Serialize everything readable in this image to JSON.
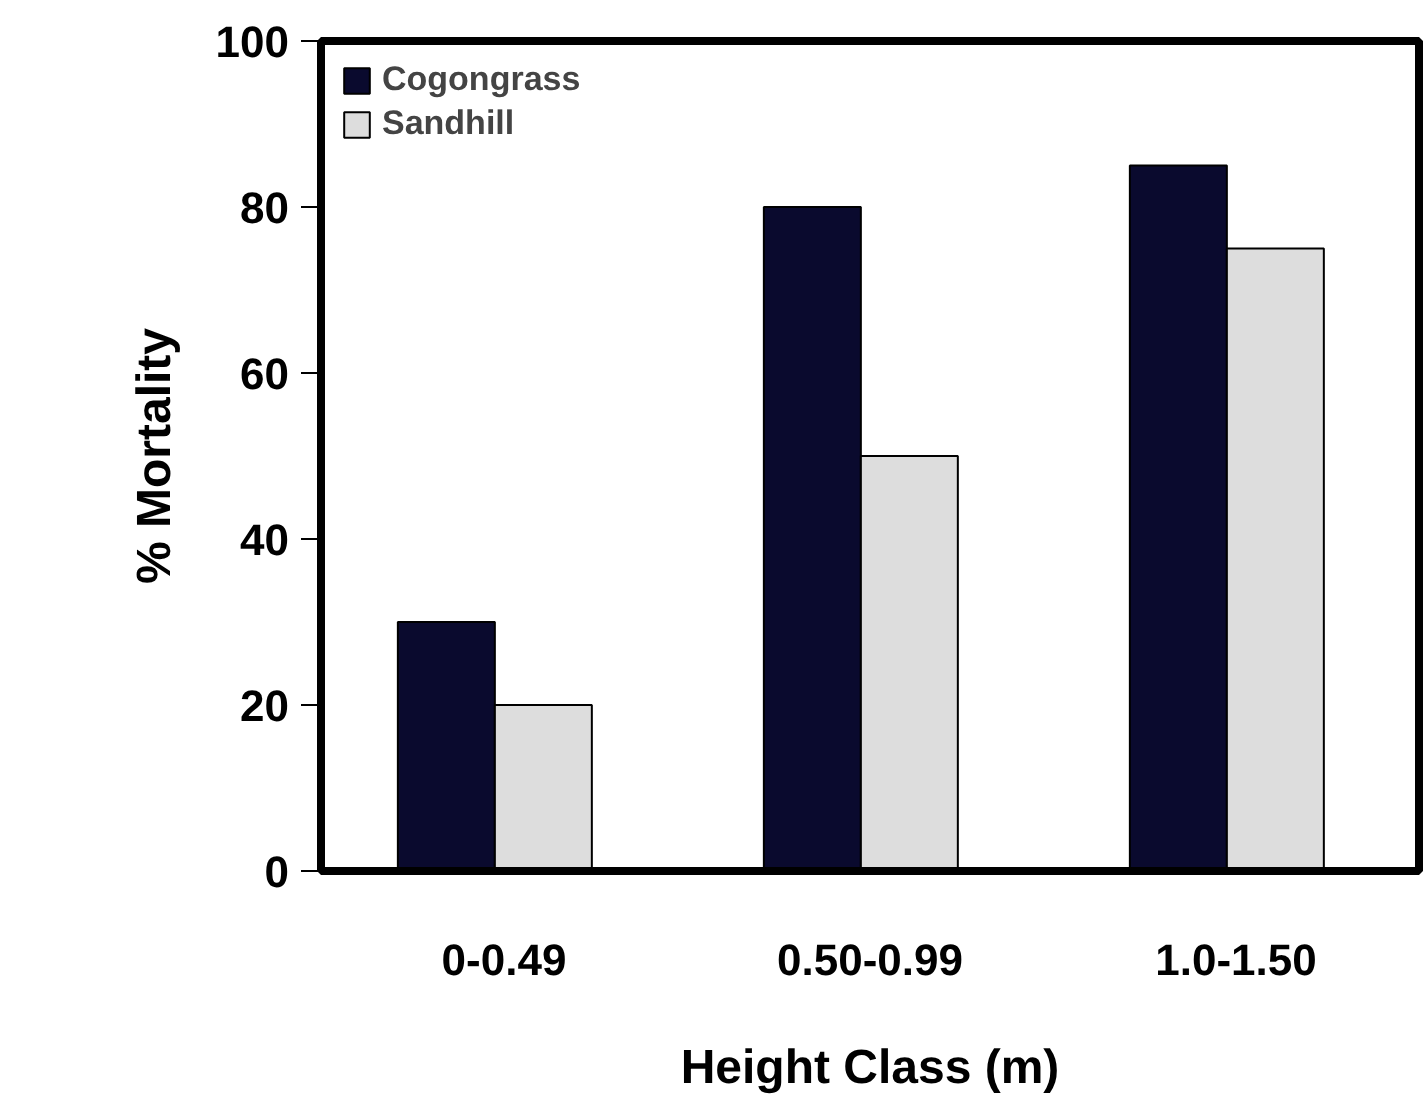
{
  "chart_data": {
    "type": "bar",
    "xlabel": "Height Class (m)",
    "ylabel": "% Mortality",
    "categories": [
      "0-0.49",
      "0.50-0.99",
      "1.0-1.50"
    ],
    "series": [
      {
        "name": "Cogongrass",
        "color": "#0a0a2e",
        "values": [
          30,
          80,
          85
        ]
      },
      {
        "name": "Sandhill",
        "color": "#dddddd",
        "values": [
          20,
          50,
          75
        ]
      }
    ],
    "ylim": [
      0,
      100
    ],
    "yticks": [
      0,
      20,
      40,
      60,
      80,
      100
    ],
    "grid": false,
    "legend": "top left"
  }
}
